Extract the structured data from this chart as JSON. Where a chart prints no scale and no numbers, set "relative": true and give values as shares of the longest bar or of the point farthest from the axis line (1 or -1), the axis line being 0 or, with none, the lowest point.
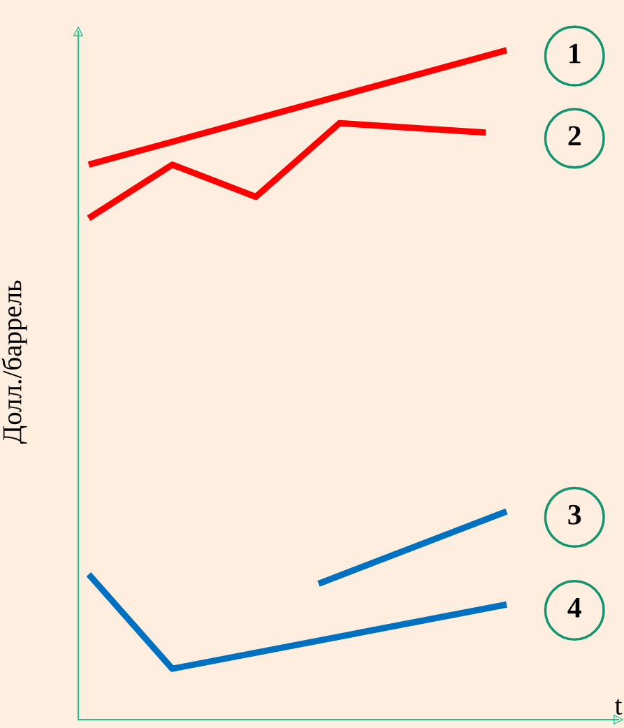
{
  "chart_data": {
    "type": "line",
    "relative": true,
    "ylabel": "Долл./баррель",
    "xlabel": "t",
    "grid": false,
    "legend": false,
    "marker": "none",
    "line_style": "solid",
    "categories": [
      null,
      null,
      null,
      null,
      null,
      null,
      null,
      null,
      null,
      null,
      null,
      null,
      null,
      null,
      null,
      null,
      null,
      null,
      null,
      null,
      null
    ],
    "series": [
      {
        "name": "1",
        "color": "#ff0000",
        "values": [
          0.829,
          null,
          null,
          null,
          null,
          null,
          null,
          null,
          null,
          null,
          null,
          null,
          null,
          null,
          null,
          null,
          null,
          null,
          null,
          null,
          1.0
        ]
      },
      {
        "name": "2",
        "color": "#ff0000",
        "values": [
          0.749,
          null,
          null,
          null,
          0.829,
          null,
          null,
          null,
          0.781,
          null,
          null,
          null,
          0.891,
          null,
          null,
          null,
          null,
          null,
          null,
          0.877,
          null
        ]
      },
      {
        "name": "3",
        "color": "#0070c0",
        "values": [
          null,
          null,
          null,
          null,
          null,
          null,
          null,
          null,
          null,
          null,
          null,
          0.203,
          null,
          null,
          null,
          null,
          null,
          null,
          null,
          null,
          0.311
        ]
      },
      {
        "name": "4",
        "color": "#0070c0",
        "values": [
          0.217,
          null,
          null,
          null,
          0.076,
          null,
          null,
          null,
          null,
          null,
          null,
          null,
          null,
          null,
          null,
          null,
          null,
          null,
          null,
          null,
          0.172
        ]
      }
    ]
  }
}
